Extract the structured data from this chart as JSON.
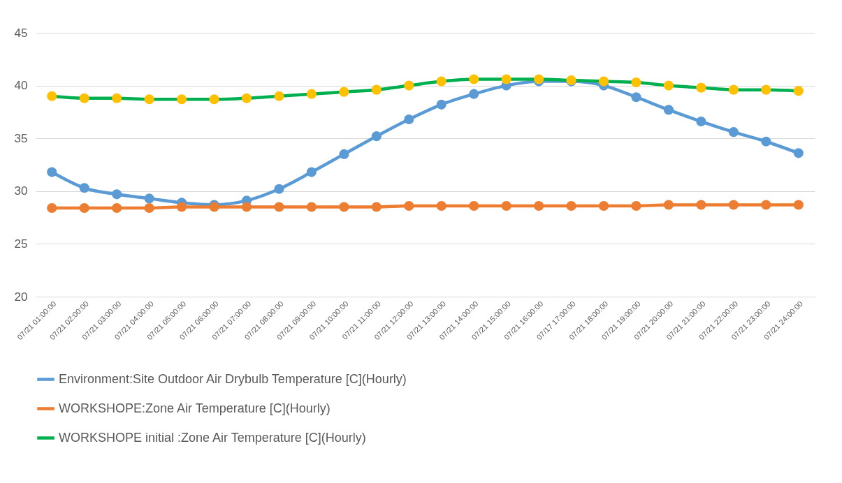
{
  "chart_data": {
    "type": "line",
    "categories": [
      "07/21 01:00:00",
      "07/21 02:00:00",
      "07/21 03:00:00",
      "07/21 04:00:00",
      "07/21 05:00:00",
      "07/21 06:00:00",
      "07/21 07:00:00",
      "07/21 08:00:00",
      "07/21 09:00:00",
      "07/21 10:00:00",
      "07/21 11:00:00",
      "07/21 12:00:00",
      "07/21 13:00:00",
      "07/21 14:00:00",
      "07/21 15:00:00",
      "07/21 16:00:00",
      "07/17 17:00:00",
      "07/21 18:00:00",
      "07/21 19:00:00",
      "07/21 20:00:00",
      "07/21 21:00:00",
      "07/21 22:00:00",
      "07/21 23:00:00",
      "07/21 24:00:00"
    ],
    "series": [
      {
        "name": "Environment:Site Outdoor Air Drybulb Temperature [C](Hourly)",
        "color": "#5b9bd5",
        "values": [
          31.8,
          30.3,
          29.7,
          29.3,
          28.9,
          28.7,
          29.1,
          30.2,
          31.8,
          33.5,
          35.2,
          36.8,
          38.2,
          39.2,
          40.0,
          40.4,
          40.4,
          40.0,
          38.9,
          37.7,
          36.6,
          35.6,
          34.7,
          33.6
        ]
      },
      {
        "name": "WORKSHOPE:Zone Air Temperature [C](Hourly)",
        "color": "#ed7d31",
        "values": [
          28.4,
          28.4,
          28.4,
          28.4,
          28.5,
          28.5,
          28.5,
          28.5,
          28.5,
          28.5,
          28.5,
          28.6,
          28.6,
          28.6,
          28.6,
          28.6,
          28.6,
          28.6,
          28.6,
          28.7,
          28.7,
          28.7,
          28.7,
          28.7
        ]
      },
      {
        "name": "WORKSHOPE initial :Zone Air Temperature [C](Hourly)",
        "color": "#00b050",
        "colors": [
          "#ffc000",
          "#ffc000",
          "#ffc000",
          "#ffc000",
          "#ffc000",
          "#ffc000",
          "#ffc000",
          "#ffc000",
          "#ffc000",
          "#ffc000",
          "#ffc000",
          "#ffc000",
          "#ffc000",
          "#ffc000",
          "#ffc000",
          "#ffc000",
          "#ffc000",
          "#ffc000",
          "#ffc000",
          "#ffc000",
          "#ffc000",
          "#ffc000",
          "#ffc000",
          "#ffc000"
        ],
        "values": [
          39.0,
          38.8,
          38.8,
          38.7,
          38.7,
          38.7,
          38.8,
          39.0,
          39.2,
          39.4,
          39.6,
          40.0,
          40.4,
          40.6,
          40.6,
          40.6,
          40.5,
          40.4,
          40.3,
          40.0,
          39.8,
          39.6,
          39.6,
          39.5
        ]
      }
    ],
    "ylim": [
      20,
      45
    ],
    "yticks": [
      20,
      25,
      30,
      35,
      40,
      45
    ],
    "grid": "y",
    "legend": "bottom",
    "marker": "circle",
    "line_style": "solid"
  }
}
